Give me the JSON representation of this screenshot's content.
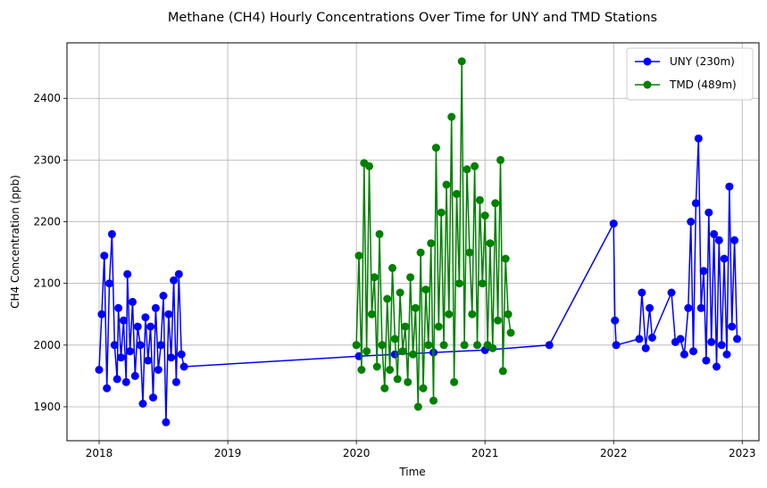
{
  "chart_data": {
    "type": "line",
    "title": "Methane (CH4) Hourly Concentrations Over Time for UNY and TMD Stations",
    "xlabel": "Time",
    "ylabel": "CH4 Concentration (ppb)",
    "xlim": [
      2017.75,
      2023.13
    ],
    "ylim": [
      1845,
      2490
    ],
    "x_ticks": [
      {
        "value": 2018,
        "label": "2018"
      },
      {
        "value": 2019,
        "label": "2019"
      },
      {
        "value": 2020,
        "label": "2020"
      },
      {
        "value": 2021,
        "label": "2021"
      },
      {
        "value": 2022,
        "label": "2022"
      },
      {
        "value": 2023,
        "label": "2023"
      }
    ],
    "y_ticks": [
      {
        "value": 1900,
        "label": "1900"
      },
      {
        "value": 2000,
        "label": "2000"
      },
      {
        "value": 2100,
        "label": "2100"
      },
      {
        "value": 2200,
        "label": "2200"
      },
      {
        "value": 2300,
        "label": "2300"
      },
      {
        "value": 2400,
        "label": "2400"
      }
    ],
    "grid": true,
    "legend_position": "top-right",
    "series": [
      {
        "name": "UNY (230m)",
        "color": "#0000ff",
        "marker": "circle",
        "x": [
          2018.0,
          2018.02,
          2018.04,
          2018.06,
          2018.08,
          2018.1,
          2018.12,
          2018.14,
          2018.15,
          2018.17,
          2018.19,
          2018.21,
          2018.22,
          2018.24,
          2018.26,
          2018.28,
          2018.3,
          2018.32,
          2018.34,
          2018.36,
          2018.38,
          2018.4,
          2018.42,
          2018.44,
          2018.46,
          2018.48,
          2018.5,
          2018.52,
          2018.54,
          2018.56,
          2018.58,
          2018.6,
          2018.62,
          2018.64,
          2018.66,
          2020.02,
          2020.3,
          2020.6,
          2021.0,
          2021.5,
          2022.0,
          2022.01,
          2022.02,
          2022.2,
          2022.22,
          2022.25,
          2022.28,
          2022.3,
          2022.45,
          2022.48,
          2022.52,
          2022.55,
          2022.58,
          2022.6,
          2022.62,
          2022.64,
          2022.66,
          2022.68,
          2022.7,
          2022.72,
          2022.74,
          2022.76,
          2022.78,
          2022.8,
          2022.82,
          2022.84,
          2022.86,
          2022.88,
          2022.9,
          2022.92,
          2022.94,
          2022.96
        ],
        "y": [
          1960,
          2050,
          2145,
          1930,
          2100,
          2180,
          2000,
          1945,
          2060,
          1980,
          2040,
          1940,
          2115,
          1990,
          2070,
          1950,
          2030,
          2000,
          1905,
          2045,
          1975,
          2030,
          1915,
          2060,
          1960,
          2000,
          2080,
          1875,
          2050,
          1980,
          2105,
          1940,
          2115,
          1985,
          1965,
          1982,
          1985,
          1988,
          1992,
          2000,
          2197,
          2040,
          2000,
          2010,
          2085,
          1995,
          2060,
          2012,
          2085,
          2005,
          2010,
          1985,
          2060,
          2200,
          1990,
          2230,
          2335,
          2060,
          2120,
          1975,
          2215,
          2005,
          2180,
          1965,
          2170,
          2000,
          2140,
          1985,
          2257,
          2030,
          2170,
          2010
        ]
      },
      {
        "name": "TMD (489m)",
        "color": "#008000",
        "marker": "circle",
        "x": [
          2020.0,
          2020.02,
          2020.04,
          2020.06,
          2020.08,
          2020.1,
          2020.12,
          2020.14,
          2020.16,
          2020.18,
          2020.2,
          2020.22,
          2020.24,
          2020.26,
          2020.28,
          2020.3,
          2020.32,
          2020.34,
          2020.36,
          2020.38,
          2020.4,
          2020.42,
          2020.44,
          2020.46,
          2020.48,
          2020.5,
          2020.52,
          2020.54,
          2020.56,
          2020.58,
          2020.6,
          2020.62,
          2020.64,
          2020.66,
          2020.68,
          2020.7,
          2020.72,
          2020.74,
          2020.76,
          2020.78,
          2020.8,
          2020.82,
          2020.84,
          2020.86,
          2020.88,
          2020.9,
          2020.92,
          2020.94,
          2020.96,
          2020.98,
          2021.0,
          2021.02,
          2021.04,
          2021.06,
          2021.08,
          2021.1,
          2021.12,
          2021.14,
          2021.16,
          2021.18,
          2021.2
        ],
        "y": [
          2000,
          2145,
          1960,
          2295,
          1990,
          2290,
          2050,
          2110,
          1965,
          2180,
          2000,
          1930,
          2075,
          1960,
          2125,
          2010,
          1945,
          2085,
          1990,
          2030,
          1940,
          2110,
          1985,
          2060,
          1900,
          2150,
          1930,
          2090,
          2000,
          2165,
          1910,
          2320,
          2030,
          2215,
          2000,
          2260,
          2050,
          2370,
          1940,
          2245,
          2100,
          2460,
          2000,
          2285,
          2150,
          2050,
          2290,
          2000,
          2235,
          2100,
          2210,
          2000,
          2165,
          1995,
          2230,
          2040,
          2300,
          1958,
          2140,
          2050,
          2020
        ]
      }
    ]
  }
}
